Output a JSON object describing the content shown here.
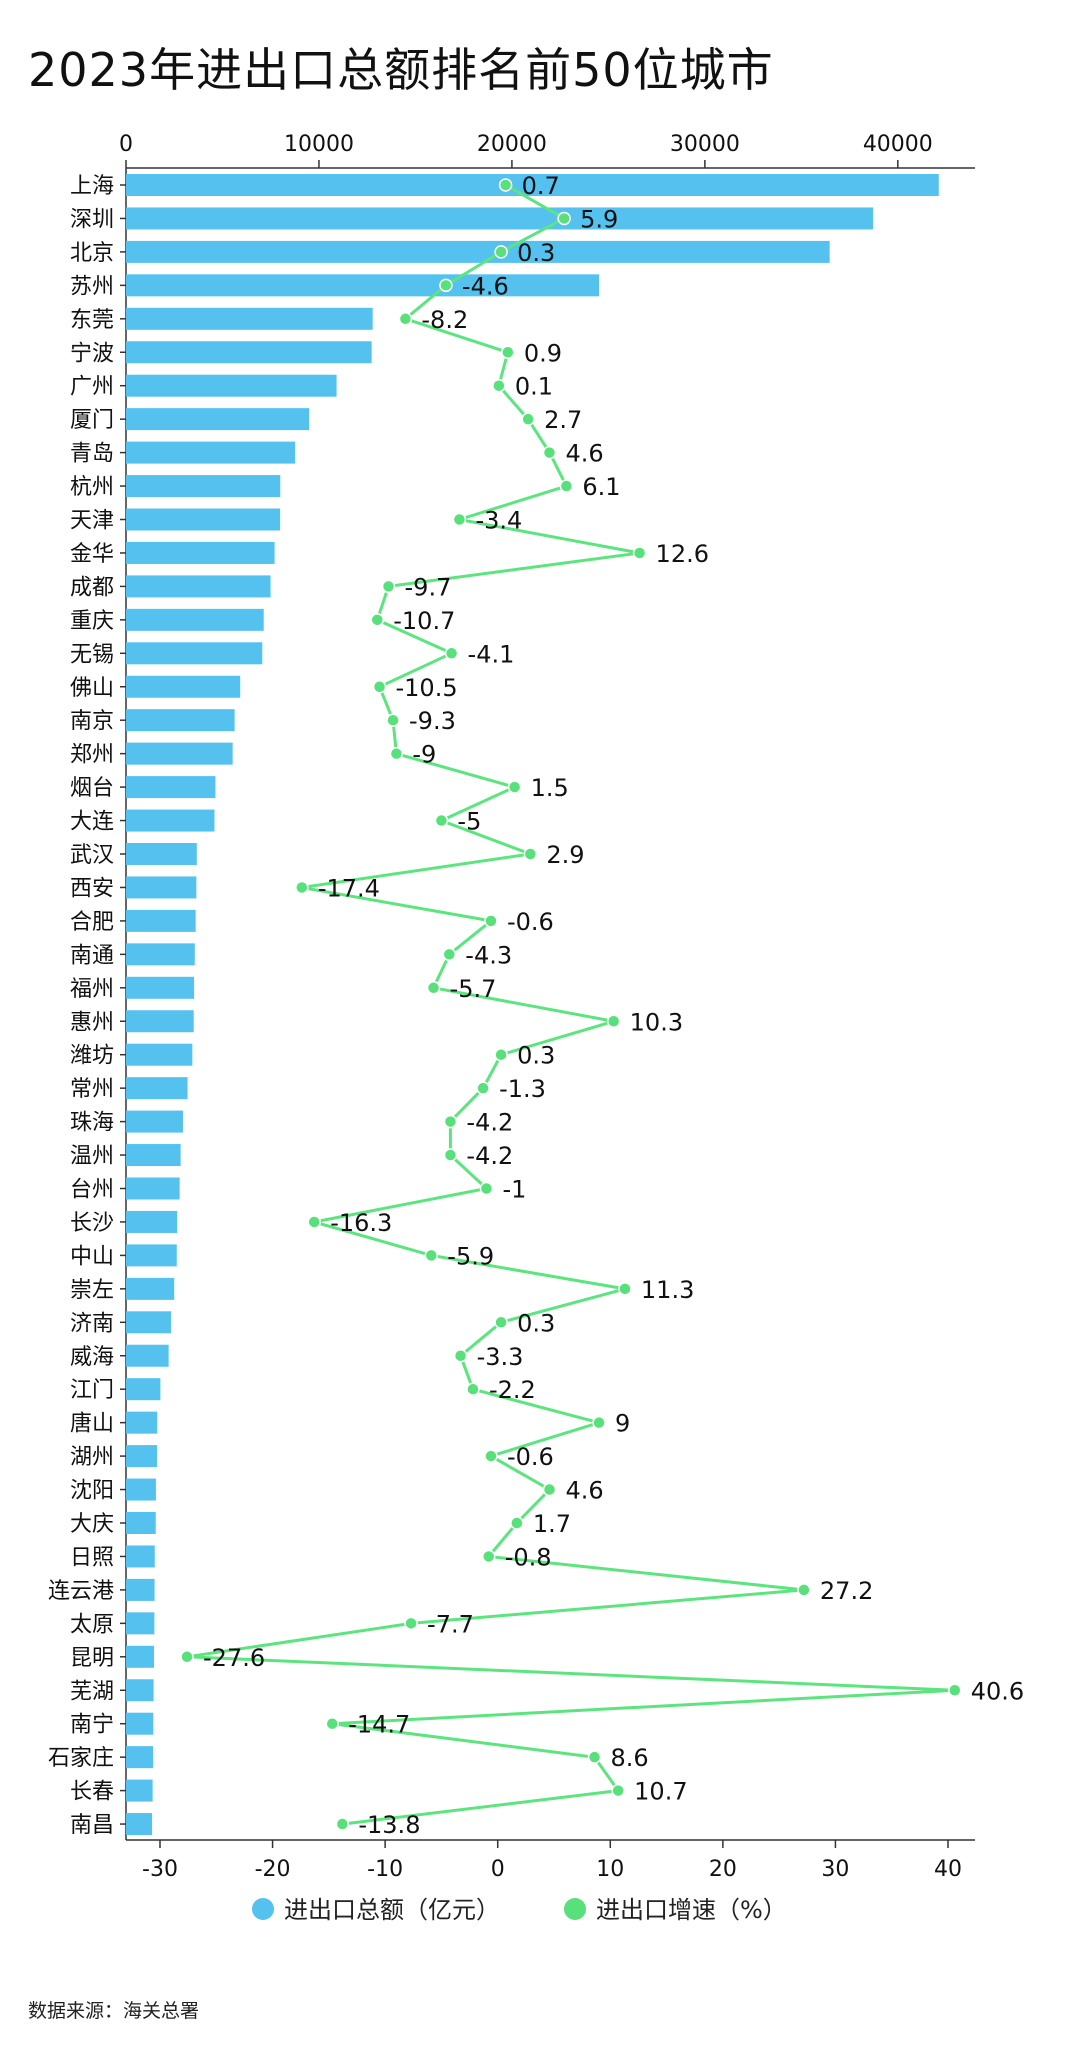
{
  "title": "2023年进出口总额排名前50位城市",
  "source": "数据来源：海关总署",
  "colors": {
    "bar": "#55c1ee",
    "line": "#5ce57f",
    "marker": "#58e07a",
    "axis": "#333333"
  },
  "chart_data": {
    "type": "bar",
    "orientation": "horizontal",
    "title": "2023年进出口总额排名前50位城市",
    "categories": [
      "上海",
      "深圳",
      "北京",
      "苏州",
      "东莞",
      "宁波",
      "广州",
      "厦门",
      "青岛",
      "杭州",
      "天津",
      "金华",
      "成都",
      "重庆",
      "无锡",
      "佛山",
      "南京",
      "郑州",
      "烟台",
      "大连",
      "武汉",
      "西安",
      "合肥",
      "南通",
      "福州",
      "惠州",
      "潍坊",
      "常州",
      "珠海",
      "温州",
      "台州",
      "长沙",
      "中山",
      "崇左",
      "济南",
      "威海",
      "江门",
      "唐山",
      "湖州",
      "沈阳",
      "大庆",
      "日照",
      "连云港",
      "太原",
      "昆明",
      "芜湖",
      "南宁",
      "石家庄",
      "长春",
      "南昌"
    ],
    "x_top": {
      "range": [
        0,
        44000
      ],
      "ticks": [
        0,
        10000,
        20000,
        30000,
        40000
      ]
    },
    "x_bottom": {
      "range": [
        -33,
        42
      ],
      "ticks": [
        -30,
        -20,
        -10,
        0,
        10,
        20,
        30,
        40
      ]
    },
    "legend_position": "bottom",
    "grid": false,
    "series": [
      {
        "name": "进出口总额（亿元）",
        "type": "bar",
        "axis": "top",
        "values": [
          42121,
          38715,
          36467,
          24514,
          12785,
          12731,
          10913,
          9489,
          8762,
          7995,
          7988,
          7700,
          7492,
          7137,
          7063,
          5918,
          5628,
          5528,
          4635,
          4585,
          3669,
          3646,
          3611,
          3564,
          3528,
          3509,
          3438,
          3190,
          2952,
          2831,
          2780,
          2654,
          2630,
          2499,
          2330,
          2209,
          1781,
          1620,
          1605,
          1550,
          1540,
          1490,
          1480,
          1470,
          1450,
          1430,
          1415,
          1400,
          1380,
          1350
        ]
      },
      {
        "name": "进出口增速（%）",
        "type": "line",
        "axis": "bottom",
        "values": [
          0.7,
          5.9,
          0.3,
          -4.6,
          -8.2,
          0.9,
          0.1,
          2.7,
          4.6,
          6.1,
          -3.4,
          12.6,
          -9.7,
          -10.7,
          -4.1,
          -10.5,
          -9.3,
          -9,
          1.5,
          -5,
          2.9,
          -17.4,
          -0.6,
          -4.3,
          -5.7,
          10.3,
          0.3,
          -1.3,
          -4.2,
          -4.2,
          -1,
          -16.3,
          -5.9,
          11.3,
          0.3,
          -3.3,
          -2.2,
          9,
          -0.6,
          4.6,
          1.7,
          -0.8,
          27.2,
          -7.7,
          -27.6,
          40.6,
          -14.7,
          8.6,
          10.7,
          -13.8
        ],
        "labels": [
          "0.7",
          "5.9",
          "0.3",
          "-4.6",
          "-8.2",
          "0.9",
          "0.1",
          "2.7",
          "4.6",
          "6.1",
          "-3.4",
          "12.6",
          "-9.7",
          "-10.7",
          "-4.1",
          "-10.5",
          "-9.3",
          "-9",
          "1.5",
          "-5",
          "2.9",
          "-17.4",
          "-0.6",
          "-4.3",
          "-5.7",
          "10.3",
          "0.3",
          "-1.3",
          "-4.2",
          "-4.2",
          "-1",
          "-16.3",
          "-5.9",
          "11.3",
          "0.3",
          "-3.3",
          "-2.2",
          "9",
          "-0.6",
          "4.6",
          "1.7",
          "-0.8",
          "27.2",
          "-7.7",
          "-27.6",
          "40.6",
          "-14.7",
          "8.6",
          "10.7",
          "-13.8"
        ]
      }
    ]
  }
}
